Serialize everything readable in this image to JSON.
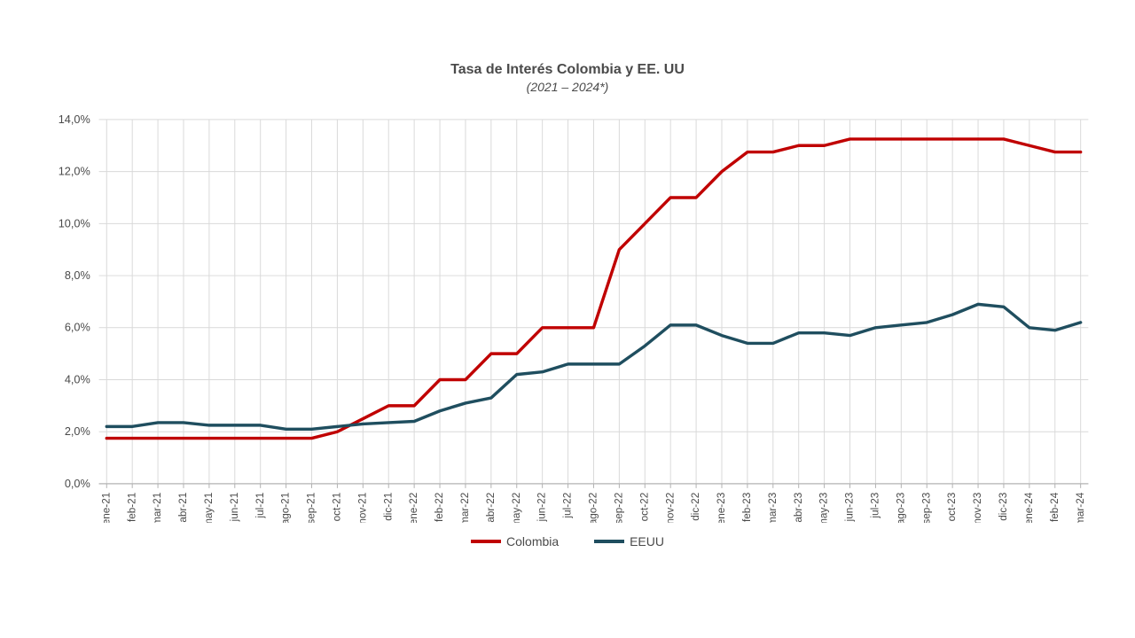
{
  "chart": {
    "type": "line",
    "title": "Tasa de Interés Colombia y EE. UU",
    "subtitle": "(2021 – 2024*)",
    "title_fontsize": 16,
    "subtitle_fontsize": 14,
    "title_color": "#4a4a4a",
    "background_color": "#ffffff",
    "axis_color": "#b0b0b0",
    "grid_color": "#d9d9d9",
    "y": {
      "min": 0,
      "max": 14,
      "tick_step": 2,
      "decimals": 1,
      "decimal_sep": ",",
      "suffix": "%",
      "ticks": [
        0,
        2,
        4,
        6,
        8,
        10,
        12,
        14
      ],
      "label_fontsize": 13
    },
    "x_labels": [
      "ene-21",
      "feb-21",
      "mar-21",
      "abr-21",
      "may-21",
      "jun-21",
      "jul-21",
      "ago-21",
      "sep-21",
      "oct-21",
      "nov-21",
      "dic-21",
      "ene-22",
      "feb-22",
      "mar-22",
      "abr-22",
      "may-22",
      "jun-22",
      "jul-22",
      "ago-22",
      "sep-22",
      "oct-22",
      "nov-22",
      "dic-22",
      "ene-23",
      "feb-23",
      "mar-23",
      "abr-23",
      "may-23",
      "jun-23",
      "jul-23",
      "ago-23",
      "sep-23",
      "oct-23",
      "nov-23",
      "dic-23",
      "ene-24",
      "feb-24",
      "mar-24"
    ],
    "x_label_fontsize": 12,
    "series": [
      {
        "name": "Colombia",
        "color": "#c00000",
        "line_width": 3.5,
        "values": [
          1.75,
          1.75,
          1.75,
          1.75,
          1.75,
          1.75,
          1.75,
          1.75,
          1.75,
          2.0,
          2.5,
          3.0,
          3.0,
          4.0,
          4.0,
          5.0,
          5.0,
          6.0,
          6.0,
          6.0,
          9.0,
          10.0,
          11.0,
          11.0,
          12.0,
          12.75,
          12.75,
          13.0,
          13.0,
          13.25,
          13.25,
          13.25,
          13.25,
          13.25,
          13.25,
          13.25,
          13.0,
          12.75,
          12.75
        ]
      },
      {
        "name": "EEUU",
        "color": "#1f4e5f",
        "line_width": 3.5,
        "values": [
          2.2,
          2.2,
          2.35,
          2.35,
          2.25,
          2.25,
          2.25,
          2.1,
          2.1,
          2.2,
          2.3,
          2.35,
          2.4,
          2.8,
          3.1,
          3.3,
          4.2,
          4.3,
          4.6,
          4.6,
          4.6,
          5.3,
          6.1,
          6.1,
          5.7,
          5.4,
          5.4,
          5.8,
          5.8,
          5.7,
          6.0,
          6.1,
          6.2,
          6.5,
          6.9,
          6.8,
          6.0,
          5.9,
          6.2
        ]
      }
    ],
    "legend": {
      "items": [
        {
          "label": "Colombia",
          "color": "#c00000"
        },
        {
          "label": "EEUU",
          "color": "#1f4e5f"
        }
      ],
      "fontsize": 14
    }
  }
}
